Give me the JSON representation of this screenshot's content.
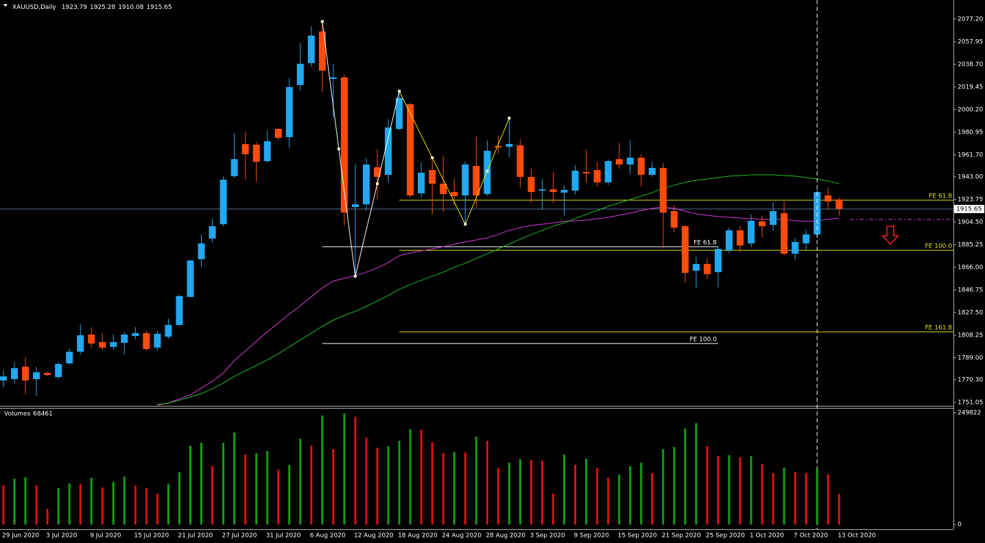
{
  "chart_data": [
    {
      "type": "candlestick",
      "title": "XAUUSD,Daily",
      "categories": [
        "29 Jun 2020",
        null,
        null,
        null,
        "3 Jul 2020",
        null,
        null,
        null,
        "9 Jul 2020",
        null,
        null,
        null,
        "15 Jul 2020",
        null,
        null,
        null,
        "21 Jul 2020",
        null,
        null,
        null,
        "27 Jul 2020",
        null,
        null,
        null,
        "31 Jul 2020",
        null,
        null,
        null,
        "6 Aug 2020",
        null,
        null,
        null,
        "12 Aug 2020",
        null,
        null,
        null,
        "18 Aug 2020",
        null,
        null,
        null,
        "24 Aug 2020",
        null,
        null,
        null,
        "28 Aug 2020",
        null,
        null,
        null,
        "3 Sep 2020",
        null,
        null,
        null,
        "9 Sep 2020",
        null,
        null,
        null,
        "15 Sep 2020",
        null,
        null,
        null,
        "21 Sep 2020",
        null,
        null,
        null,
        "25 Sep 2020",
        null,
        null,
        null,
        "1 Oct 2020",
        null,
        null,
        null,
        "7 Oct 2020",
        null,
        null,
        null,
        "13 Oct 2020"
      ],
      "open": [
        1769.7,
        1770.9,
        1781.4,
        1770.9,
        1776.1,
        1772.6,
        1784.3,
        1794.2,
        1808.8,
        1802.4,
        1798.3,
        1801.8,
        1807.6,
        1810.0,
        1797.7,
        1807.0,
        1817.0,
        1840.9,
        1873.0,
        1890.5,
        1902.7,
        1943.6,
        1970.9,
        1970.4,
        1956.4,
        1983.8,
        1976.8,
        2021.2,
        2039.8,
        2066.7,
        2026.4,
        2027.6,
        1917.3,
        1919.6,
        1951.2,
        1944.7,
        1983.8,
        2004.8,
        1929.0,
        1948.8,
        1937.2,
        1930.1,
        1927.2,
        1952.3,
        1928.4,
        1969.2,
        1968.6,
        1969.8,
        1943.0,
        1931.3,
        1932.4,
        1929.6,
        1931.3,
        1947.1,
        1948.8,
        1938.3,
        1958.1,
        1953.5,
        1959.3,
        1944.7,
        1950.6,
        1913.8,
        1901.0,
        1863.1,
        1868.9,
        1861.9,
        1880.5,
        1897.5,
        1886.4,
        1905.1,
        1902.1,
        1912.1,
        1877.6,
        1886.4,
        1894.0,
        1927.2,
        1923.79
      ],
      "high": [
        1778.5,
        1785.5,
        1789.5,
        1781.4,
        1777.3,
        1785.5,
        1797.1,
        1817.5,
        1815.2,
        1809.9,
        1808.8,
        1811.1,
        1815.2,
        1812.2,
        1811.7,
        1822.3,
        1842.7,
        1872.4,
        1894.0,
        1907.4,
        1943.5,
        1980.3,
        1980.9,
        1972.7,
        1982.6,
        1984.4,
        2027.0,
        2056.7,
        2071.3,
        2075.2,
        2039.2,
        2029.9,
        1953.7,
        1958.7,
        1966.4,
        1992.2,
        2015.9,
        2006.0,
        1955.2,
        1960.0,
        1961.0,
        1942.0,
        1956.0,
        1977.0,
        1974.0,
        1978.0,
        1993.0,
        1975.0,
        1950.0,
        1941.0,
        1947.0,
        1936.0,
        1953.0,
        1966.0,
        1956.0,
        1958.0,
        1972.0,
        1974.0,
        1962.0,
        1956.0,
        1955.0,
        1919.0,
        1902.0,
        1875.0,
        1874.0,
        1884.0,
        1900.0,
        1901.0,
        1911.0,
        1910.0,
        1921.0,
        1922.0,
        1891.0,
        1898.0,
        1932.0,
        1934.0,
        1925.28
      ],
      "low": [
        1763.9,
        1766.8,
        1758.0,
        1756.3,
        1773.2,
        1770.9,
        1783.1,
        1791.9,
        1797.7,
        1795.3,
        1795.9,
        1791.9,
        1804.7,
        1795.3,
        1795.3,
        1805.3,
        1816.4,
        1840.3,
        1866.6,
        1887.0,
        1901.0,
        1942.3,
        1940.6,
        1938.8,
        1955.2,
        1974.4,
        1967.5,
        2016.6,
        2036.4,
        2015.4,
        1993.5,
        1901.6,
        1858.4,
        1914.4,
        1924.0,
        1938.2,
        1982.6,
        1925.5,
        1925.0,
        1911.0,
        1913.0,
        1919.0,
        1902.7,
        1917.0,
        1927.0,
        1963.0,
        1960.0,
        1934.0,
        1921.0,
        1915.0,
        1921.0,
        1910.0,
        1928.0,
        1938.0,
        1935.0,
        1936.0,
        1950.0,
        1945.0,
        1935.0,
        1943.0,
        1882.0,
        1896.0,
        1853.0,
        1848.0,
        1856.0,
        1849.0,
        1878.0,
        1879.0,
        1883.0,
        1891.0,
        1897.0,
        1876.0,
        1872.0,
        1880.0,
        1891.0,
        1915.0,
        1910.08
      ],
      "close": [
        1773.2,
        1780.2,
        1769.7,
        1776.7,
        1774.4,
        1783.7,
        1794.2,
        1808.2,
        1801.2,
        1797.7,
        1802.4,
        1808.8,
        1810.0,
        1796.5,
        1809.4,
        1817.0,
        1841.5,
        1871.8,
        1886.4,
        1901.0,
        1940.6,
        1958.1,
        1962.2,
        1955.8,
        1973.3,
        1976.2,
        2019.4,
        2039.2,
        2063.2,
        2033.4,
        2027.6,
        1912.6,
        1919.6,
        1953.5,
        1943.0,
        1985.0,
        2010.1,
        1927.2,
        1946.5,
        1937.2,
        1928.4,
        1926.6,
        1953.5,
        1927.2,
        1965.2,
        1968.1,
        1971.0,
        1943.0,
        1930.1,
        1932.4,
        1930.1,
        1931.9,
        1948.2,
        1945.9,
        1938.3,
        1956.4,
        1953.5,
        1959.3,
        1944.7,
        1950.6,
        1912.6,
        1899.8,
        1861.3,
        1868.9,
        1860.2,
        1881.7,
        1897.5,
        1884.6,
        1905.6,
        1901.0,
        1913.8,
        1877.6,
        1887.6,
        1894.0,
        1930.1,
        1922.0,
        1915.65
      ],
      "up_color": "#21a8f0",
      "down_color": "#ff4b0b",
      "price_line_color": "#5f7396",
      "overlays": [
        {
          "color": "#e03ce0",
          "values": [
            null,
            null,
            null,
            null,
            null,
            null,
            null,
            null,
            null,
            null,
            null,
            null,
            null,
            null,
            1748.7,
            1750.5,
            1754.0,
            1757.5,
            1763.3,
            1769.1,
            1776.1,
            1786.6,
            1794.8,
            1803.0,
            1811.1,
            1818.7,
            1826.3,
            1833.3,
            1840.9,
            1848.5,
            1854.3,
            1856.6,
            1859.0,
            1861.9,
            1865.4,
            1870.1,
            1875.9,
            1878.2,
            1880.0,
            1881.7,
            1883.5,
            1885.8,
            1887.6,
            1889.3,
            1891.1,
            1894.0,
            1897.5,
            1899.8,
            1901.6,
            1902.7,
            1903.9,
            1905.1,
            1905.6,
            1906.2,
            1907.4,
            1908.6,
            1910.3,
            1912.1,
            1914.4,
            1916.2,
            1917.3,
            1916.2,
            1913.8,
            1911.5,
            1910.3,
            1909.2,
            1908.6,
            1908.0,
            1907.4,
            1906.8,
            1906.8,
            1906.8,
            1905.6,
            1905.1,
            1905.6,
            1906.8,
            1908.0
          ]
        },
        {
          "color": "#22c322",
          "values": [
            null,
            null,
            null,
            null,
            null,
            null,
            null,
            null,
            null,
            null,
            null,
            null,
            null,
            null,
            1749.3,
            1750.5,
            1752.8,
            1755.7,
            1758.6,
            1762.7,
            1767.4,
            1773.2,
            1777.9,
            1782.5,
            1787.2,
            1792.5,
            1798.3,
            1804.1,
            1810.0,
            1815.8,
            1821.1,
            1825.1,
            1828.6,
            1832.7,
            1837.4,
            1842.1,
            1847.3,
            1851.4,
            1854.9,
            1858.4,
            1861.9,
            1866.0,
            1869.5,
            1873.6,
            1877.6,
            1881.7,
            1885.8,
            1889.9,
            1894.0,
            1897.5,
            1901.0,
            1903.9,
            1907.4,
            1910.9,
            1914.4,
            1917.9,
            1920.8,
            1923.7,
            1926.6,
            1929.6,
            1933.1,
            1936.0,
            1938.3,
            1940.1,
            1941.2,
            1942.4,
            1943.6,
            1944.1,
            1944.7,
            1944.7,
            1944.7,
            1944.1,
            1943.6,
            1942.4,
            1941.2,
            1939.5,
            1937.1
          ]
        }
      ],
      "levels": [
        {
          "label": "FE 61.8",
          "value": 1923.1,
          "color": "#e6e600",
          "x": [
            36
          ]
        },
        {
          "label": "FE 61.8",
          "value": 1883.5,
          "color": "#ffffff",
          "x": [
            29,
            65
          ]
        },
        {
          "label": "FE 100.0",
          "value": 1880.5,
          "color": "#e6e600",
          "x": [
            36
          ]
        },
        {
          "label": "FE 161.8",
          "value": 1811.1,
          "color": "#e6e600",
          "x": [
            36
          ]
        },
        {
          "label": "FE 100.0",
          "value": 1801.2,
          "color": "#ffffff",
          "x": [
            29,
            65
          ]
        }
      ],
      "zigzags": [
        {
          "color": "#ffffff",
          "x": [
            29,
            32,
            36
          ],
          "values": [
            2075.2,
            1858.4,
            2015.9
          ]
        },
        {
          "color": "#e6e600",
          "x": [
            36,
            42,
            46
          ],
          "values": [
            2015.9,
            1902.7,
            1993.0
          ]
        }
      ],
      "vline": 74,
      "projection": {
        "value": 1906.8,
        "x": [
          77
        ],
        "color": "#e03ce0"
      },
      "ylim": [
        1748.1,
        2093.5
      ],
      "yticks": [
        {
          "value": 2077.2,
          "label": "2077.20"
        },
        {
          "value": 2057.95,
          "label": "2057.95"
        },
        {
          "value": 2038.7,
          "label": "2038.70"
        },
        {
          "value": 2019.45,
          "label": "2019.45"
        },
        {
          "value": 2000.2,
          "label": "2000.20"
        },
        {
          "value": 1980.95,
          "label": "1980.95"
        },
        {
          "value": 1961.7,
          "label": "1961.70"
        },
        {
          "value": 1943,
          "label": "1943.00"
        },
        {
          "value": 1923.75,
          "label": "1923.75"
        },
        {
          "value": 1904.5,
          "label": "1904.50"
        },
        {
          "value": 1885.25,
          "label": "1885.25"
        },
        {
          "value": 1866,
          "label": "1866.00"
        },
        {
          "value": 1846.75,
          "label": "1846.75"
        },
        {
          "value": 1827.5,
          "label": "1827.50"
        },
        {
          "value": 1808.25,
          "label": "1808.25"
        },
        {
          "value": 1789,
          "label": "1789.00"
        },
        {
          "value": 1770.3,
          "label": "1770.30"
        },
        {
          "value": 1751.05,
          "label": "1751.05"
        }
      ]
    },
    {
      "type": "bar",
      "label": "Volumes",
      "values": [
        87360,
        102690,
        105760,
        87360,
        35250,
        81230,
        91960,
        90430,
        104220,
        82770,
        95030,
        107290,
        87360,
        81230,
        68970,
        90430,
        116490,
        176260,
        182390,
        130280,
        182390,
        205380,
        156340,
        159400,
        164000,
        122620,
        133340,
        191590,
        176260,
        243700,
        168600,
        248300,
        240630,
        194650,
        171660,
        174730,
        186990,
        213050,
        211500,
        183920,
        159400,
        162470,
        161000,
        196190,
        186990,
        125680,
        137940,
        145610,
        144000,
        143000,
        68970,
        156340,
        133340,
        147140,
        125680,
        104220,
        111890,
        130280,
        137940,
        114950,
        168600,
        173200,
        214580,
        226840,
        174730,
        153270,
        154800,
        150200,
        153270,
        134880,
        114950,
        127210,
        118020,
        114950,
        124150,
        111890,
        68461
      ],
      "up_color": "#10a010",
      "down_color": "#e01010",
      "ylim": [
        -10729,
        260550
      ],
      "yticks": [
        249822,
        0
      ]
    }
  ]
}
